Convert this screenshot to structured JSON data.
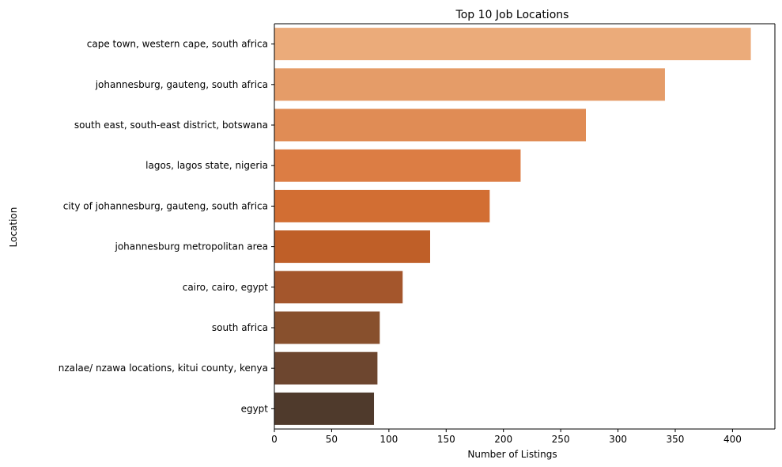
{
  "chart_data": {
    "type": "bar",
    "orientation": "horizontal",
    "title": "Top 10 Job Locations",
    "xlabel": "Number of Listings",
    "ylabel": "Location",
    "xlim": [
      0,
      437
    ],
    "xticks": [
      0,
      50,
      100,
      150,
      200,
      250,
      300,
      350,
      400
    ],
    "grid": false,
    "categories": [
      "cape town, western cape, south africa",
      "johannesburg, gauteng, south africa",
      "south east, south-east district, botswana",
      "lagos, lagos state, nigeria",
      "city of johannesburg, gauteng, south africa",
      "johannesburg metropolitan area",
      "cairo, cairo, egypt",
      "south africa",
      "nzalae/ nzawa locations, kitui county, kenya",
      "egypt"
    ],
    "values": [
      416,
      341,
      272,
      215,
      188,
      136,
      112,
      92,
      90,
      87
    ],
    "colors": [
      "#ebab7a",
      "#e59c68",
      "#e08c55",
      "#dc7d44",
      "#d26e33",
      "#bf5f28",
      "#a4562c",
      "#88502d",
      "#6d462f",
      "#4f3a2c"
    ]
  }
}
